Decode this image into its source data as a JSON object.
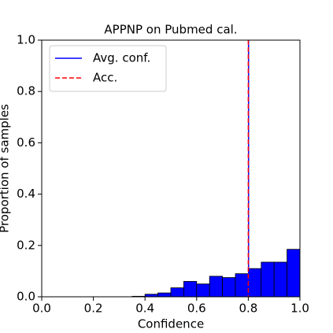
{
  "chart_data": {
    "type": "histogram",
    "title": "APPNP on Pubmed cal.",
    "xlabel": "Confidence",
    "ylabel": "Proportion of samples",
    "bins": [
      0.0,
      0.05,
      0.1,
      0.15,
      0.2,
      0.25,
      0.3,
      0.35,
      0.4,
      0.45,
      0.5,
      0.55,
      0.6,
      0.65,
      0.7,
      0.75,
      0.8,
      0.85,
      0.9,
      0.95,
      1.0
    ],
    "values": [
      0,
      0,
      0,
      0,
      0,
      0,
      0,
      0.002,
      0.01,
      0.015,
      0.035,
      0.06,
      0.05,
      0.08,
      0.075,
      0.09,
      0.11,
      0.135,
      0.135,
      0.185
    ],
    "color": "#0000ff",
    "edgecolor": "#000000",
    "vlines": [
      {
        "name": "Avg. conf.",
        "color": "#0000ff",
        "style": "solid",
        "value": 0.801
      },
      {
        "name": "Acc.",
        "color": "#ff0000",
        "style": "dashed",
        "value": 0.8
      }
    ],
    "legend": "upper left",
    "xlim": [
      0,
      1
    ],
    "ylim": [
      0,
      1
    ],
    "xticks": [
      {
        "value": 0,
        "label": "0.0"
      },
      {
        "value": 0.2,
        "label": "0.2"
      },
      {
        "value": 0.4,
        "label": "0.4"
      },
      {
        "value": 0.6,
        "label": "0.6"
      },
      {
        "value": 0.8,
        "label": "0.8"
      },
      {
        "value": 1,
        "label": "1.0"
      }
    ],
    "yticks": [
      {
        "value": 0,
        "label": "0.0"
      },
      {
        "value": 0.2,
        "label": "0.2"
      },
      {
        "value": 0.4,
        "label": "0.4"
      },
      {
        "value": 0.6,
        "label": "0.6"
      },
      {
        "value": 0.8,
        "label": "0.8"
      },
      {
        "value": 1,
        "label": "1.0"
      }
    ]
  }
}
